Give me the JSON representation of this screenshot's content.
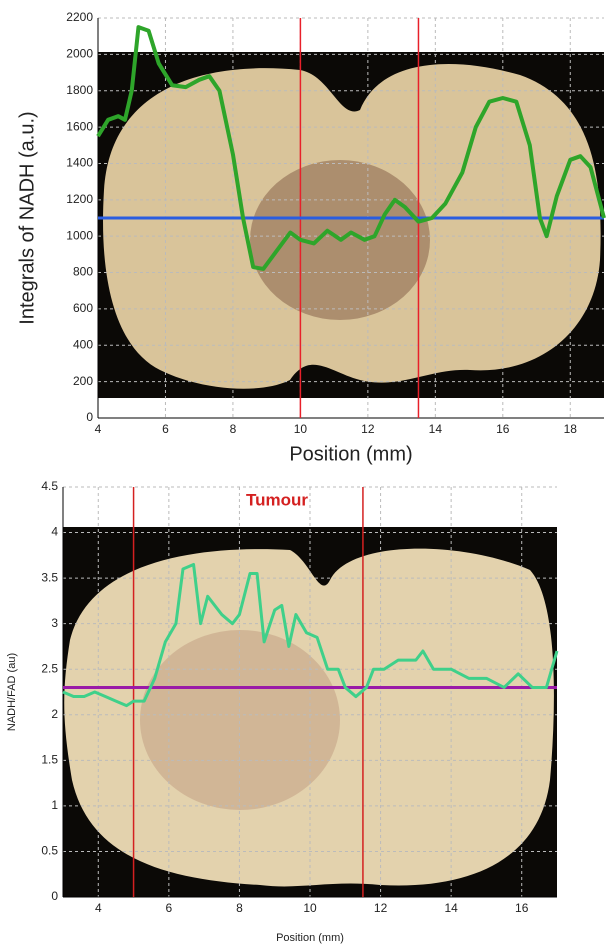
{
  "chart_data": [
    {
      "type": "line",
      "x_label": "Position (mm)",
      "y_label": "Integrals of NADH (a.u.)",
      "x": [
        4.0,
        4.3,
        4.6,
        4.8,
        5.0,
        5.2,
        5.5,
        5.8,
        6.2,
        6.6,
        7.0,
        7.3,
        7.6,
        8.0,
        8.3,
        8.6,
        8.9,
        9.3,
        9.7,
        10.0,
        10.4,
        10.8,
        11.2,
        11.5,
        11.9,
        12.2,
        12.5,
        12.8,
        13.1,
        13.5,
        13.9,
        14.3,
        14.8,
        15.2,
        15.6,
        16.0,
        16.4,
        16.8,
        17.1,
        17.3,
        17.6,
        18.0,
        18.3,
        18.6,
        19.0
      ],
      "values": [
        1550,
        1640,
        1660,
        1640,
        1800,
        2150,
        2130,
        1950,
        1830,
        1820,
        1860,
        1880,
        1800,
        1450,
        1100,
        830,
        820,
        920,
        1020,
        980,
        960,
        1030,
        980,
        1020,
        980,
        1000,
        1120,
        1200,
        1160,
        1080,
        1100,
        1180,
        1350,
        1600,
        1740,
        1760,
        1740,
        1500,
        1100,
        1000,
        1220,
        1420,
        1440,
        1380,
        1100
      ],
      "color": "#2ea52a",
      "vlines": [
        10,
        13.5
      ],
      "vline_color": "#e8202a",
      "hline": 1100,
      "hline_color": "#2a5de0",
      "xlim": [
        4,
        19
      ],
      "ylim": [
        0,
        2200
      ],
      "xticks": [
        4,
        6,
        8,
        10,
        12,
        14,
        16,
        18
      ],
      "yticks": [
        0,
        200,
        400,
        600,
        800,
        1000,
        1200,
        1400,
        1600,
        1800,
        2000,
        2200
      ],
      "grid": true
    },
    {
      "type": "line",
      "x_label": "Position (mm)",
      "y_label": "NADH/FAD (au)",
      "annotation": "Tumour",
      "x": [
        3.0,
        3.3,
        3.6,
        3.9,
        4.2,
        4.5,
        4.8,
        5.0,
        5.3,
        5.6,
        5.9,
        6.2,
        6.4,
        6.7,
        6.9,
        7.1,
        7.5,
        7.8,
        8.0,
        8.3,
        8.5,
        8.7,
        9.0,
        9.2,
        9.4,
        9.6,
        9.9,
        10.2,
        10.5,
        10.8,
        11.0,
        11.3,
        11.6,
        11.8,
        12.1,
        12.5,
        13.0,
        13.2,
        13.5,
        14.0,
        14.5,
        15.0,
        15.5,
        15.9,
        16.3,
        16.7,
        17.0
      ],
      "values": [
        2.25,
        2.2,
        2.2,
        2.25,
        2.2,
        2.15,
        2.1,
        2.15,
        2.15,
        2.4,
        2.8,
        3.0,
        3.6,
        3.65,
        3.0,
        3.3,
        3.1,
        3.0,
        3.1,
        3.55,
        3.55,
        2.8,
        3.15,
        3.2,
        2.75,
        3.1,
        2.9,
        2.85,
        2.5,
        2.5,
        2.3,
        2.2,
        2.3,
        2.5,
        2.5,
        2.6,
        2.6,
        2.7,
        2.5,
        2.5,
        2.4,
        2.4,
        2.3,
        2.45,
        2.3,
        2.3,
        2.7
      ],
      "color": "#3fd08a",
      "vlines": [
        5,
        11.5
      ],
      "vline_color": "#d42020",
      "hline": 2.3,
      "hline_color": "#9a1aa8",
      "xlim": [
        3,
        17
      ],
      "ylim": [
        0,
        4.5
      ],
      "xticks": [
        4,
        6,
        8,
        10,
        12,
        14,
        16
      ],
      "yticks": [
        0,
        0.5,
        1,
        1.5,
        2,
        2.5,
        3,
        3.5,
        4,
        4.5
      ],
      "grid": true
    }
  ]
}
